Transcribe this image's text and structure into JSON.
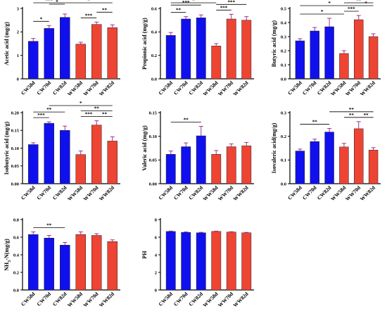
{
  "palette": {
    "blue": "#1010ee",
    "red": "#ee4433",
    "error": "#a0328c",
    "axis": "#000000"
  },
  "chart_data": [
    {
      "type": "bar",
      "ylabel": "Acetic acid (mg/g)",
      "ylim": [
        0,
        3
      ],
      "yticks": [
        0,
        1,
        2,
        3
      ],
      "categories": [
        "CW58d",
        "CW70d",
        "CW82d",
        "WW58d",
        "WW70d",
        "WW82d"
      ],
      "values": [
        1.6,
        2.15,
        2.62,
        1.48,
        2.32,
        2.18
      ],
      "errors": [
        0.12,
        0.12,
        0.14,
        0.08,
        0.1,
        0.12
      ],
      "colors": [
        "blue",
        "blue",
        "blue",
        "red",
        "red",
        "red"
      ],
      "significance": [
        {
          "from": 0,
          "to": 1,
          "label": "*",
          "level": 0
        },
        {
          "from": 1,
          "to": 2,
          "label": "*",
          "level": 1
        },
        {
          "from": 0,
          "to": 2,
          "label": "***",
          "level": 2
        },
        {
          "from": 3,
          "to": 4,
          "label": "***",
          "level": 0
        },
        {
          "from": 4,
          "to": 5,
          "label": "**",
          "level": 1
        },
        {
          "from": 2,
          "to": 5,
          "label": "*",
          "level": 2
        }
      ]
    },
    {
      "type": "bar",
      "ylabel": "Propionic acid (mg/g)",
      "ylim": [
        0,
        0.6
      ],
      "yticks": [
        0.0,
        0.2,
        0.4,
        0.6
      ],
      "categories": [
        "CW58d",
        "CW70d",
        "CW82d",
        "WW58d",
        "WW70d",
        "WW82d"
      ],
      "values": [
        0.37,
        0.51,
        0.52,
        0.28,
        0.51,
        0.5
      ],
      "errors": [
        0.025,
        0.02,
        0.025,
        0.02,
        0.04,
        0.03
      ],
      "colors": [
        "blue",
        "blue",
        "blue",
        "red",
        "red",
        "red"
      ],
      "significance": [
        {
          "from": 0,
          "to": 1,
          "label": "**",
          "level": 0
        },
        {
          "from": 0,
          "to": 2,
          "label": "***",
          "level": 1
        },
        {
          "from": 3,
          "to": 4,
          "label": "***",
          "level": 0
        },
        {
          "from": 3,
          "to": 5,
          "label": "***",
          "level": 1
        },
        {
          "from": 0,
          "to": 3,
          "label": "*",
          "level": 2
        }
      ]
    },
    {
      "type": "bar",
      "ylabel": "Butyric acid (mg/g)",
      "ylim": [
        0,
        0.5
      ],
      "yticks": [
        0.0,
        0.1,
        0.2,
        0.3,
        0.4,
        0.5
      ],
      "categories": [
        "CW58d",
        "CW70d",
        "CW82d",
        "WW58d",
        "WW70d",
        "WW82d"
      ],
      "values": [
        0.27,
        0.34,
        0.37,
        0.18,
        0.42,
        0.3
      ],
      "errors": [
        0.015,
        0.025,
        0.06,
        0.02,
        0.03,
        0.02
      ],
      "colors": [
        "blue",
        "blue",
        "blue",
        "red",
        "red",
        "red"
      ],
      "significance": [
        {
          "from": 0,
          "to": 3,
          "label": "*",
          "level": 0
        },
        {
          "from": 0,
          "to": 4,
          "label": "*",
          "level": 1
        },
        {
          "from": 3,
          "to": 4,
          "label": "***",
          "level": 0
        },
        {
          "from": 4,
          "to": 5,
          "label": "*",
          "level": 1
        },
        {
          "from": 3,
          "to": 5,
          "label": "**",
          "level": 2
        }
      ]
    },
    {
      "type": "bar",
      "ylabel": "Isobutyric acid (mg/g)",
      "ylim": [
        0,
        0.2
      ],
      "yticks": [
        0.0,
        0.05,
        0.1,
        0.15,
        0.2
      ],
      "categories": [
        "CW58d",
        "CW70d",
        "CW82d",
        "WW58d",
        "WW70d",
        "WW82d"
      ],
      "values": [
        0.11,
        0.17,
        0.15,
        0.082,
        0.165,
        0.12
      ],
      "errors": [
        0.005,
        0.004,
        0.012,
        0.01,
        0.012,
        0.012
      ],
      "colors": [
        "blue",
        "blue",
        "blue",
        "red",
        "red",
        "red"
      ],
      "significance": [
        {
          "from": 0,
          "to": 1,
          "label": "***",
          "level": 0
        },
        {
          "from": 0,
          "to": 2,
          "label": "**",
          "level": 1
        },
        {
          "from": 3,
          "to": 4,
          "label": "***",
          "level": 0
        },
        {
          "from": 4,
          "to": 5,
          "label": "**",
          "level": 0
        },
        {
          "from": 3,
          "to": 5,
          "label": "**",
          "level": 1
        },
        {
          "from": 1,
          "to": 5,
          "label": "*",
          "level": 2
        }
      ]
    },
    {
      "type": "bar",
      "ylabel": "Valeric acid (mg/g)",
      "ylim": [
        0,
        0.15
      ],
      "yticks": [
        0.0,
        0.05,
        0.1,
        0.15
      ],
      "categories": [
        "CW58d",
        "CW70d",
        "CW82d",
        "WW58d",
        "WW70d",
        "WW82d"
      ],
      "values": [
        0.062,
        0.078,
        0.101,
        0.062,
        0.078,
        0.08
      ],
      "errors": [
        0.007,
        0.008,
        0.02,
        0.008,
        0.006,
        0.007
      ],
      "colors": [
        "blue",
        "blue",
        "blue",
        "red",
        "red",
        "red"
      ],
      "significance": [
        {
          "from": 0,
          "to": 2,
          "label": "**",
          "level": 0
        }
      ]
    },
    {
      "type": "bar",
      "ylabel": "Isovaleric acid(mg/g)",
      "ylim": [
        0,
        0.3
      ],
      "yticks": [
        0.0,
        0.1,
        0.2,
        0.3
      ],
      "categories": [
        "CW58d",
        "CW70d",
        "CW82d",
        "WW58d",
        "WW70d",
        "WW82d"
      ],
      "values": [
        0.138,
        0.178,
        0.218,
        0.155,
        0.232,
        0.142
      ],
      "errors": [
        0.008,
        0.01,
        0.015,
        0.015,
        0.03,
        0.01
      ],
      "colors": [
        "blue",
        "blue",
        "blue",
        "red",
        "red",
        "red"
      ],
      "significance": [
        {
          "from": 0,
          "to": 2,
          "label": "**",
          "level": 0
        },
        {
          "from": 3,
          "to": 4,
          "label": "**",
          "level": 0
        },
        {
          "from": 4,
          "to": 5,
          "label": "**",
          "level": 0
        },
        {
          "from": 2,
          "to": 5,
          "label": "**",
          "level": 1
        }
      ]
    },
    {
      "type": "bar",
      "ylabel": "NH3-N(mg/g)",
      "ylim": [
        0,
        0.8
      ],
      "yticks": [
        0.0,
        0.2,
        0.4,
        0.6,
        0.8
      ],
      "categories": [
        "CW58d",
        "CW70d",
        "CW82d",
        "WW58d",
        "WW70d",
        "WW82d"
      ],
      "values": [
        0.63,
        0.59,
        0.51,
        0.63,
        0.62,
        0.55
      ],
      "errors": [
        0.03,
        0.03,
        0.03,
        0.03,
        0.02,
        0.02
      ],
      "colors": [
        "blue",
        "blue",
        "blue",
        "red",
        "red",
        "red"
      ],
      "significance": [
        {
          "from": 0,
          "to": 2,
          "label": "**",
          "level": 0
        }
      ]
    },
    {
      "type": "bar",
      "ylabel": "PH",
      "ylim": [
        0,
        8
      ],
      "yticks": [
        0,
        2,
        4,
        6,
        8
      ],
      "categories": [
        "CW58d",
        "CW70d",
        "CW82d",
        "WW58d",
        "WW70d",
        "WW82d"
      ],
      "values": [
        6.65,
        6.55,
        6.5,
        6.65,
        6.58,
        6.5
      ],
      "errors": [
        0.05,
        0.05,
        0.05,
        0.04,
        0.04,
        0.04
      ],
      "colors": [
        "blue",
        "blue",
        "blue",
        "red",
        "red",
        "red"
      ],
      "significance": []
    }
  ]
}
